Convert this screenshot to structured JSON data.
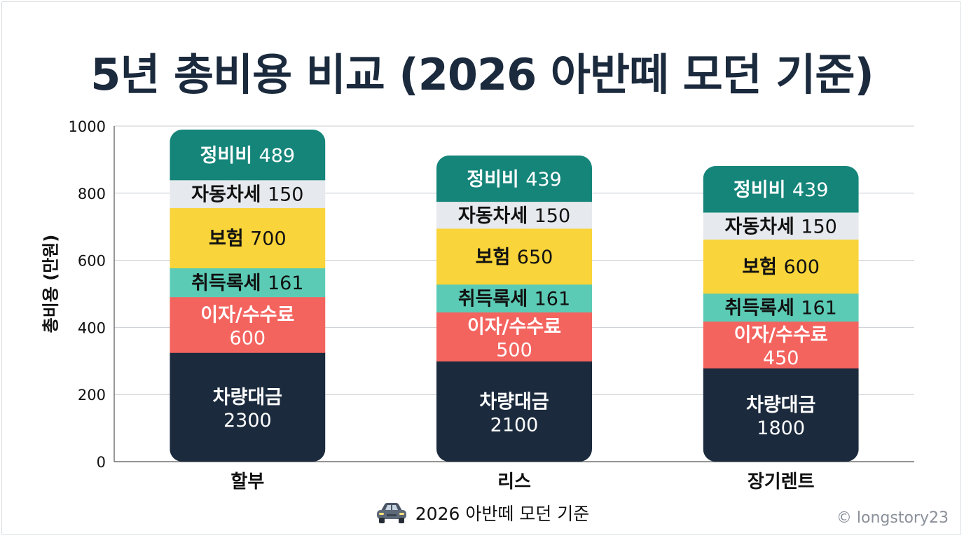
{
  "chart_data": {
    "type": "bar",
    "stacked": true,
    "title": "5년 총비용 비교 (2026 아반떼 모던 기준)",
    "ylabel": "총비용 (만원)",
    "xlabel": "",
    "ylim": [
      0,
      1000
    ],
    "yticks": [
      "0",
      "200",
      "400",
      "600",
      "800",
      "1000"
    ],
    "grid": true,
    "categories": [
      "할부",
      "리스",
      "장기렌트"
    ],
    "stack_order": [
      "차량대금",
      "이자/수수료",
      "취득록세",
      "보험",
      "자동차세",
      "정비비"
    ],
    "stacks": [
      [
        {
          "name": "차량대금",
          "value": 2300,
          "label": "차량대금",
          "value_text": "2300",
          "color": "#1b2a3d",
          "text_color": "#ffffff"
        },
        {
          "name": "이자/수수료",
          "value": 600,
          "label": "이자/수수료",
          "value_text": "600",
          "color": "#f4645f",
          "text_color": "#ffffff"
        },
        {
          "name": "취득록세",
          "value": 161,
          "label": "취득록세",
          "value_text": "161",
          "color": "#5ccbb5",
          "text_color": "#111111"
        },
        {
          "name": "보험",
          "value": 700,
          "label": "보험",
          "value_text": "700",
          "color": "#f9d43a",
          "text_color": "#111111"
        },
        {
          "name": "자동차세",
          "value": 150,
          "label": "자동차세",
          "value_text": "150",
          "color": "#e6e9ed",
          "text_color": "#111111"
        },
        {
          "name": "정비비",
          "value": 489,
          "label": "정비비",
          "value_text": "489",
          "color": "#15857a",
          "text_color": "#ffffff"
        }
      ],
      [
        {
          "name": "차량대금",
          "value": 2100,
          "label": "차량대금",
          "value_text": "2100",
          "color": "#1b2a3d",
          "text_color": "#ffffff"
        },
        {
          "name": "이자/수수료",
          "value": 500,
          "label": "이자/수수료",
          "value_text": "500",
          "color": "#f4645f",
          "text_color": "#ffffff"
        },
        {
          "name": "취득록세",
          "value": 161,
          "label": "취득록세",
          "value_text": "161",
          "color": "#5ccbb5",
          "text_color": "#111111"
        },
        {
          "name": "보험",
          "value": 650,
          "label": "보험",
          "value_text": "650",
          "color": "#f9d43a",
          "text_color": "#111111"
        },
        {
          "name": "자동차세",
          "value": 150,
          "label": "자동차세",
          "value_text": "150",
          "color": "#e6e9ed",
          "text_color": "#111111"
        },
        {
          "name": "정비비",
          "value": 439,
          "label": "정비비",
          "value_text": "439",
          "color": "#15857a",
          "text_color": "#ffffff"
        }
      ],
      [
        {
          "name": "차량대금",
          "value": 1800,
          "label": "차량대금",
          "value_text": "1800",
          "color": "#1b2a3d",
          "text_color": "#ffffff"
        },
        {
          "name": "이자/수수료",
          "value": 450,
          "label": "이자/수수료",
          "value_text": "450",
          "color": "#f4645f",
          "text_color": "#ffffff"
        },
        {
          "name": "취득록세",
          "value": 161,
          "label": "취득록세",
          "value_text": "161",
          "color": "#5ccbb5",
          "text_color": "#111111"
        },
        {
          "name": "보험",
          "value": 600,
          "label": "보험",
          "value_text": "600",
          "color": "#f9d43a",
          "text_color": "#111111"
        },
        {
          "name": "자동차세",
          "value": 150,
          "label": "자동차세",
          "value_text": "150",
          "color": "#e6e9ed",
          "text_color": "#111111"
        },
        {
          "name": "정비비",
          "value": 439,
          "label": "정비비",
          "value_text": "439",
          "color": "#15857a",
          "text_color": "#ffffff"
        }
      ]
    ],
    "note": "Segment label values are as printed; segment heights in the figure are not drawn to the axis scale.",
    "legend_icon": "car-icon",
    "legend_text": "2026 아반떼 모던 기준"
  },
  "watermark": "© longstory23"
}
